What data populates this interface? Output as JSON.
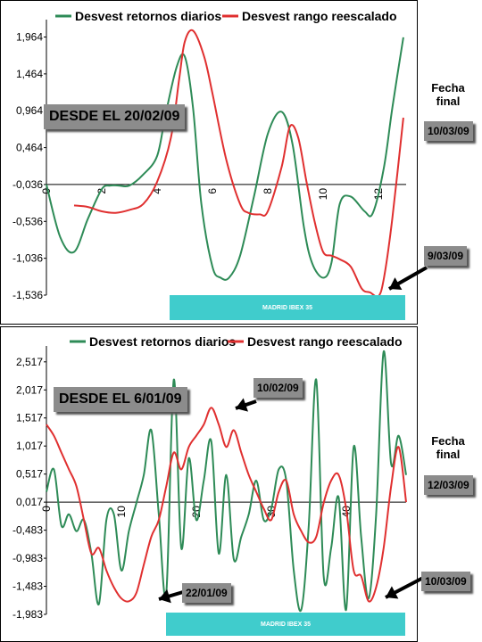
{
  "chart_data": [
    {
      "type": "line",
      "title": "",
      "legend": {
        "placement": "top",
        "entries": [
          "Desvest retornos diarios",
          "Desvest rango reescalado"
        ]
      },
      "series": [
        {
          "name": "Desvest retornos diarios",
          "color": "#2e8b57",
          "x": [
            0,
            0.5,
            1,
            1.5,
            2,
            2.3,
            2.6,
            3,
            3.5,
            4,
            4.3,
            4.7,
            5,
            5.3,
            5.6,
            6,
            6.3,
            6.6,
            7,
            7.5,
            8,
            8.5,
            8.9,
            9.3,
            9.6,
            10,
            10.3,
            10.6,
            11,
            11.5,
            11.8,
            12.2,
            12.5,
            12.9
          ],
          "y": [
            -0.036,
            -0.75,
            -0.95,
            -0.5,
            -0.1,
            -0.05,
            -0.05,
            -0.05,
            0.1,
            0.35,
            0.9,
            1.55,
            1.7,
            1.0,
            -0.3,
            -1.15,
            -1.3,
            -1.3,
            -1.0,
            -0.2,
            0.65,
            0.95,
            0.5,
            -0.6,
            -1.1,
            -1.3,
            -1.1,
            -0.3,
            -0.2,
            -0.4,
            -0.42,
            0.2,
            1.0,
            1.96
          ]
        },
        {
          "name": "Desvest rango reescalado",
          "color": "#e03030",
          "x": [
            1,
            1.5,
            2,
            2.5,
            3,
            3.5,
            4,
            4.5,
            4.8,
            5,
            5.3,
            5.7,
            6,
            6.5,
            7,
            7.3,
            7.7,
            8,
            8.5,
            8.8,
            9.1,
            9.4,
            9.7,
            10,
            10.3,
            10.6,
            11,
            11.4,
            11.7,
            12,
            12.2,
            12.5,
            12.9
          ],
          "y": [
            -0.32,
            -0.34,
            -0.4,
            -0.42,
            -0.38,
            -0.3,
            0.0,
            0.6,
            1.4,
            1.9,
            2.05,
            1.7,
            1.2,
            0.3,
            -0.3,
            -0.42,
            -0.44,
            -0.4,
            0.2,
            0.75,
            0.6,
            0.0,
            -0.55,
            -0.95,
            -1.0,
            -1.05,
            -1.15,
            -1.45,
            -1.5,
            -1.55,
            -1.3,
            -0.5,
            0.87
          ]
        }
      ],
      "xlim": [
        0,
        13
      ],
      "ylim": [
        -1.536,
        2.2
      ],
      "xticks": [
        0,
        2,
        4,
        6,
        8,
        10,
        12
      ],
      "yticks": [
        -1.536,
        -1.036,
        -0.536,
        -0.036,
        0.464,
        0.964,
        1.464,
        1.964
      ],
      "ytick_labels": [
        "-1,536",
        "-1,036",
        "-0,536",
        "-0,036",
        "0,464",
        "0,964",
        "1,464",
        "1,964"
      ],
      "grid": false,
      "annotations": [
        {
          "text": "DESDE EL 20/02/09"
        },
        {
          "text": "9/03/09"
        },
        {
          "text": "MADRID IBEX 35"
        }
      ],
      "side_label": {
        "line1": "Fecha",
        "line2": "final",
        "date": "10/03/09"
      }
    },
    {
      "type": "line",
      "title": "",
      "legend": {
        "placement": "top",
        "entries": [
          "Desvest retornos diarios",
          "Desvest rango reescalado"
        ]
      },
      "series": [
        {
          "name": "Desvest retornos diarios",
          "color": "#2e8b57",
          "x": [
            0,
            1,
            2,
            3,
            4,
            5,
            6,
            7,
            8,
            9,
            10,
            11,
            12,
            13,
            14,
            15,
            16,
            17,
            18,
            19,
            20,
            21,
            22,
            23,
            24,
            25,
            26,
            27,
            28,
            29,
            30,
            31,
            32,
            33,
            34,
            35,
            36,
            37,
            38,
            39,
            40,
            41,
            42,
            43,
            44,
            45,
            46,
            47,
            48
          ],
          "y": [
            0.2,
            0.6,
            -0.4,
            -0.2,
            -0.5,
            -0.3,
            -0.9,
            -1.8,
            -0.3,
            -0.2,
            -1.2,
            -0.5,
            0.0,
            0.5,
            1.3,
            -0.2,
            -1.6,
            2.2,
            -0.8,
            0.8,
            -0.3,
            0.4,
            1.1,
            -0.9,
            0.5,
            -1.0,
            -0.6,
            -0.2,
            0.4,
            -0.3,
            -0.1,
            0.6,
            0.4,
            -1.2,
            -1.9,
            -0.4,
            2.2,
            -1.3,
            -0.8,
            0.1,
            -1.9,
            1.0,
            -0.6,
            -1.7,
            -0.2,
            2.7,
            0.7,
            1.2,
            0.5
          ]
        },
        {
          "name": "Desvest rango reescalado",
          "color": "#e03030",
          "x": [
            0,
            1,
            2,
            3,
            4,
            5,
            6,
            7,
            8,
            9,
            10,
            11,
            12,
            13,
            14,
            15,
            16,
            17,
            18,
            19,
            20,
            21,
            22,
            23,
            24,
            25,
            26,
            27,
            28,
            29,
            30,
            31,
            32,
            33,
            34,
            35,
            36,
            37,
            38,
            39,
            40,
            41,
            42,
            43,
            44,
            45,
            46,
            47,
            48
          ],
          "y": [
            1.4,
            1.2,
            0.9,
            0.6,
            0.3,
            -0.3,
            -0.9,
            -0.8,
            -1.2,
            -1.5,
            -1.7,
            -1.75,
            -1.6,
            -1.1,
            -0.6,
            -0.3,
            0.3,
            0.9,
            0.6,
            1.0,
            1.2,
            1.4,
            1.7,
            1.4,
            1.0,
            1.3,
            0.9,
            0.5,
            0.2,
            -0.1,
            -0.3,
            0.2,
            0.4,
            -0.2,
            -0.5,
            -0.7,
            -0.6,
            0.0,
            0.4,
            0.5,
            -0.1,
            -1.2,
            -1.3,
            -1.75,
            -1.5,
            -0.8,
            0.3,
            1.0,
            0.017
          ]
        }
      ],
      "xlim": [
        0,
        48
      ],
      "ylim": [
        -1.983,
        2.8
      ],
      "xticks": [
        0,
        10,
        20,
        30,
        40
      ],
      "yticks": [
        -1.983,
        -1.483,
        -0.983,
        -0.483,
        0.017,
        0.517,
        1.017,
        1.517,
        2.017,
        2.517
      ],
      "ytick_labels": [
        "-1,983",
        "-1,483",
        "-0,983",
        "-0,483",
        "0,017",
        "0,517",
        "1,017",
        "1,517",
        "2,017",
        "2,517"
      ],
      "grid": false,
      "annotations": [
        {
          "text": "DESDE EL 6/01/09"
        },
        {
          "text": "10/02/09"
        },
        {
          "text": "22/01/09"
        },
        {
          "text": "10/03/09"
        },
        {
          "text": "MADRID IBEX 35"
        }
      ],
      "side_label": {
        "line1": "Fecha",
        "line2": "final",
        "date": "12/03/09"
      }
    }
  ]
}
